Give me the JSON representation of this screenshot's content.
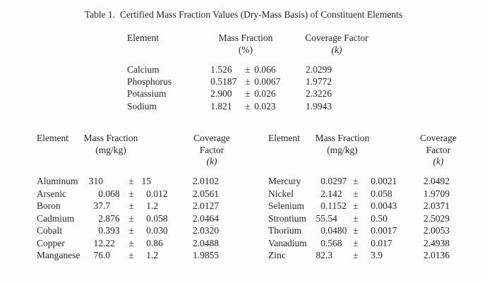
{
  "title": "Table 1.  Certified Mass Fraction Values (Dry-Mass Basis) of Constituent Elements",
  "pm_symbol": "±",
  "colors": {
    "background": "#fdfdfd",
    "text": "#262626"
  },
  "upper_table": {
    "headers": {
      "element": "Element",
      "mass_fraction": "Mass Fraction",
      "unit": "(%)",
      "coverage_factor": "Coverage Factor",
      "k": "(k)"
    },
    "rows": [
      {
        "element": "Calcium",
        "value": "1.526",
        "uncertainty": "0.066",
        "coverage_factor": "2.0299"
      },
      {
        "element": "Phosphorus",
        "value": "0.5187",
        "uncertainty": "0.0067",
        "coverage_factor": "1.9772"
      },
      {
        "element": "Potassium",
        "value": "2.900",
        "uncertainty": "0.026",
        "coverage_factor": "2.3226"
      },
      {
        "element": "Sodium",
        "value": "1.821",
        "uncertainty": "0.023",
        "coverage_factor": "1.9943"
      }
    ]
  },
  "lower_left_table": {
    "headers": {
      "element": "Element",
      "mass_fraction": "Mass Fraction",
      "unit": "(mg/kg)",
      "coverage_line1": "Coverage",
      "coverage_line2": "Factor",
      "k": "(k)"
    },
    "rows": [
      {
        "element": "Aluminum",
        "value": "310",
        "uncertainty": "15",
        "coverage_factor": "2.0102"
      },
      {
        "element": "Arsenic",
        "value": "0.068",
        "uncertainty": "0.012",
        "coverage_factor": "2.0561"
      },
      {
        "element": "Boron",
        "value": "37.7",
        "uncertainty": "1.2",
        "coverage_factor": "2.0127"
      },
      {
        "element": "Cadmium",
        "value": "2.876",
        "uncertainty": "0.058",
        "coverage_factor": "2.0464"
      },
      {
        "element": "Cobalt",
        "value": "0.393",
        "uncertainty": "0.030",
        "coverage_factor": "2.0320"
      },
      {
        "element": "Copper",
        "value": "12.22",
        "uncertainty": "0.86",
        "coverage_factor": "2.0488"
      },
      {
        "element": "Manganese",
        "value": "76.0",
        "uncertainty": "1.2",
        "coverage_factor": "1.9855"
      }
    ]
  },
  "lower_right_table": {
    "headers": {
      "element": "Element",
      "mass_fraction": "Mass Fraction",
      "unit": "(mg/kg)",
      "coverage_line1": "Coverage",
      "coverage_line2": "Factor",
      "k": "(k)"
    },
    "rows": [
      {
        "element": "Mercury",
        "value": "0.0297",
        "uncertainty": "0.0021",
        "coverage_factor": "2.0492"
      },
      {
        "element": "Nickel",
        "value": "2.142",
        "uncertainty": "0.058",
        "coverage_factor": "1.9709"
      },
      {
        "element": "Selenium",
        "value": "0.1152",
        "uncertainty": "0.0043",
        "coverage_factor": "2.0371"
      },
      {
        "element": "Strontium",
        "value": "55.54",
        "uncertainty": "0.50",
        "coverage_factor": "2.5029"
      },
      {
        "element": "Thorium",
        "value": "0.0480",
        "uncertainty": "0.0017",
        "coverage_factor": "2.0053"
      },
      {
        "element": "Vanadium",
        "value": "0.568",
        "uncertainty": "0.017",
        "coverage_factor": "2.4938"
      },
      {
        "element": "Zinc",
        "value": "82.3",
        "uncertainty": "3.9",
        "coverage_factor": "2.0136"
      }
    ]
  }
}
